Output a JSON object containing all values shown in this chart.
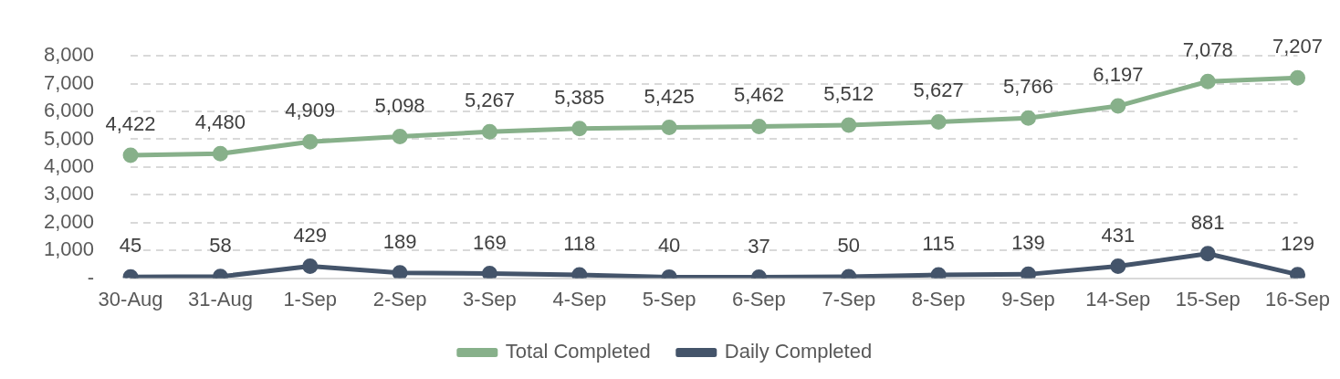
{
  "chart_data": {
    "type": "line",
    "categories": [
      "30-Aug",
      "31-Aug",
      "1-Sep",
      "2-Sep",
      "3-Sep",
      "4-Sep",
      "5-Sep",
      "6-Sep",
      "7-Sep",
      "8-Sep",
      "9-Sep",
      "14-Sep",
      "15-Sep",
      "16-Sep"
    ],
    "series": [
      {
        "name": "Total Completed",
        "color": "#87b08a",
        "values": [
          4422,
          4480,
          4909,
          5098,
          5267,
          5385,
          5425,
          5462,
          5512,
          5627,
          5766,
          6197,
          7078,
          7207
        ],
        "value_labels": [
          "4,422",
          "4,480",
          "4,909",
          "5,098",
          "5,267",
          "5,385",
          "5,425",
          "5,462",
          "5,512",
          "5,627",
          "5,766",
          "6,197",
          "7,078",
          "7,207"
        ]
      },
      {
        "name": "Daily Completed",
        "color": "#44546a",
        "values": [
          45,
          58,
          429,
          189,
          169,
          118,
          40,
          37,
          50,
          115,
          139,
          431,
          881,
          129
        ],
        "value_labels": [
          "45",
          "58",
          "429",
          "189",
          "169",
          "118",
          "40",
          "37",
          "50",
          "115",
          "139",
          "431",
          "881",
          "129"
        ]
      }
    ],
    "ylim": [
      0,
      8000
    ],
    "yticks": [
      {
        "value": 0,
        "label": "-"
      },
      {
        "value": 1000,
        "label": "1,000"
      },
      {
        "value": 2000,
        "label": "2,000"
      },
      {
        "value": 3000,
        "label": "3,000"
      },
      {
        "value": 4000,
        "label": "4,000"
      },
      {
        "value": 5000,
        "label": "5,000"
      },
      {
        "value": 6000,
        "label": "6,000"
      },
      {
        "value": 7000,
        "label": "7,000"
      },
      {
        "value": 8000,
        "label": "8,000"
      }
    ],
    "grid": "y",
    "legend": "bottom",
    "marker": "circle",
    "line_style": "solid"
  }
}
